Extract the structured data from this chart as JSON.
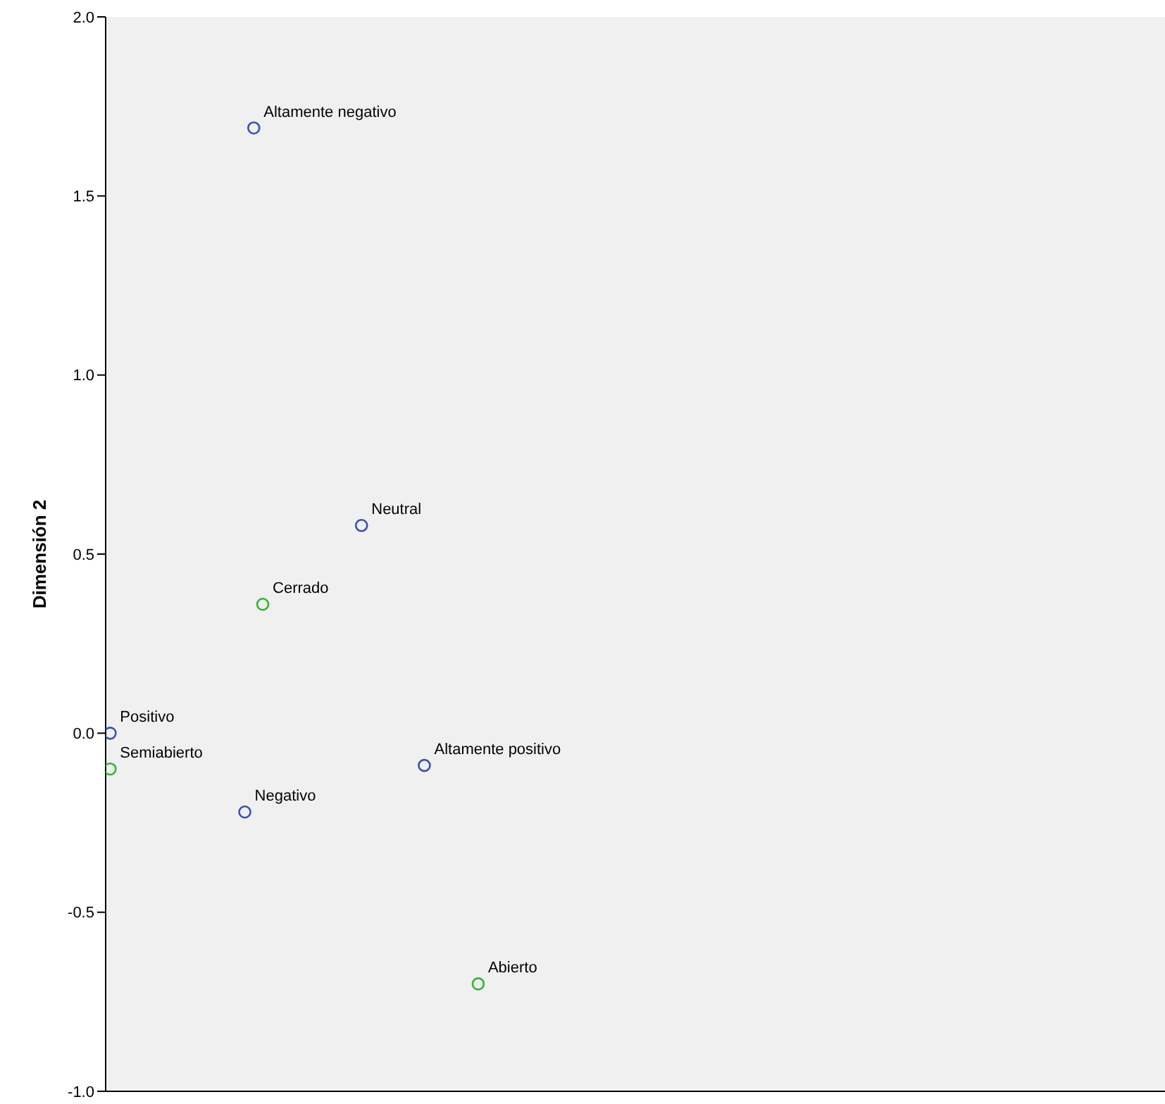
{
  "chart_data": {
    "type": "scatter",
    "ylabel": "Dimensión 2",
    "categories": [
      null,
      null,
      null,
      null,
      null,
      null,
      null,
      null,
      null,
      null,
      null,
      null,
      null,
      null,
      null,
      null,
      null,
      null,
      null,
      null,
      null,
      null,
      null,
      null,
      null,
      null,
      null,
      null,
      null,
      null,
      null,
      null,
      null,
      null,
      null,
      null,
      null,
      null,
      null,
      null,
      null,
      null,
      null,
      null,
      null,
      null,
      null,
      null,
      null,
      null,
      null,
      null,
      null,
      null,
      null,
      null,
      null,
      null,
      null,
      null,
      null,
      null,
      null,
      null,
      null,
      null,
      null,
      null,
      null,
      null,
      null,
      null,
      null,
      null,
      null,
      null,
      null,
      null,
      null,
      null,
      null,
      null,
      null,
      null,
      null,
      null,
      null,
      null,
      null,
      null,
      null,
      null,
      null,
      null,
      null,
      null,
      null,
      null,
      null,
      null,
      null,
      null,
      null,
      null,
      null,
      null,
      null,
      null,
      null,
      null,
      null,
      null,
      null,
      null,
      null,
      null,
      null,
      null
    ],
    "ylim": [
      -1,
      2
    ],
    "yticks": [
      {
        "value": -1,
        "label": "-1.0"
      },
      {
        "value": -0.5,
        "label": "-0.5"
      },
      {
        "value": 0,
        "label": "0.0"
      },
      {
        "value": 0.5,
        "label": "0.5"
      },
      {
        "value": 1,
        "label": "1.0"
      },
      {
        "value": 1.5,
        "label": "1.5"
      },
      {
        "value": 2,
        "label": "2.0"
      }
    ],
    "tick_labels": "y",
    "marker": "circle",
    "series": [
      {
        "color": "#3c50b4",
        "values": [
          0.0,
          null,
          null,
          null,
          null,
          null,
          null,
          null,
          null,
          null,
          null,
          null,
          null,
          null,
          null,
          -0.22,
          1.69,
          null,
          null,
          null,
          null,
          null,
          null,
          null,
          null,
          null,
          null,
          null,
          0.58,
          null,
          null,
          null,
          null,
          null,
          null,
          -0.09,
          null,
          null,
          null,
          null,
          null,
          null,
          null,
          null,
          null,
          null,
          null,
          null,
          null,
          null,
          null,
          null,
          null,
          null,
          null,
          null,
          null,
          null,
          null,
          null,
          null,
          null,
          null,
          null,
          null,
          null,
          null,
          null,
          null,
          null,
          null,
          null,
          null,
          null,
          null,
          null,
          null,
          null,
          null,
          null,
          null,
          null,
          null,
          null,
          null,
          null,
          null,
          null,
          null,
          null,
          null,
          null,
          null,
          null,
          null,
          null,
          null,
          null,
          null,
          null,
          null,
          null,
          null,
          null,
          null,
          null,
          null,
          null,
          null,
          null,
          null,
          null,
          null,
          null,
          null,
          null,
          null,
          null
        ],
        "value_labels": [
          "Positivo",
          null,
          null,
          null,
          null,
          null,
          null,
          null,
          null,
          null,
          null,
          null,
          null,
          null,
          null,
          "Negativo",
          "Altamente negativo",
          null,
          null,
          null,
          null,
          null,
          null,
          null,
          null,
          null,
          null,
          null,
          "Neutral",
          null,
          null,
          null,
          null,
          null,
          null,
          "Altamente positivo",
          null,
          null,
          null,
          null,
          null,
          null,
          null,
          null,
          null,
          null,
          null,
          null,
          null,
          null,
          null,
          null,
          null,
          null,
          null,
          null,
          null,
          null,
          null,
          null,
          null,
          null,
          null,
          null,
          null,
          null,
          null,
          null,
          null,
          null,
          null,
          null,
          null,
          null,
          null,
          null,
          null,
          null,
          null,
          null,
          null,
          null,
          null,
          null,
          null,
          null,
          null,
          null,
          null,
          null,
          null,
          null,
          null,
          null,
          null,
          null,
          null,
          null,
          null,
          null,
          null,
          null,
          null,
          null,
          null,
          null,
          null,
          null,
          null,
          null,
          null,
          null,
          null,
          null,
          null,
          null,
          null,
          null
        ]
      },
      {
        "color": "#2eb82e",
        "values": [
          -0.1,
          null,
          null,
          null,
          null,
          null,
          null,
          null,
          null,
          null,
          null,
          null,
          null,
          null,
          null,
          null,
          null,
          0.36,
          null,
          null,
          null,
          null,
          null,
          null,
          null,
          null,
          null,
          null,
          null,
          null,
          null,
          null,
          null,
          null,
          null,
          null,
          null,
          null,
          null,
          null,
          null,
          -0.7,
          null,
          null,
          null,
          null,
          null,
          null,
          null,
          null,
          null,
          null,
          null,
          null,
          null,
          null,
          null,
          null,
          null,
          null,
          null,
          null,
          null,
          null,
          null,
          null,
          null,
          null,
          null,
          null,
          null,
          null,
          null,
          null,
          null,
          null,
          null,
          null,
          null,
          null,
          null,
          null,
          null,
          null,
          null,
          null,
          null,
          null,
          null,
          null,
          null,
          null,
          null,
          null,
          null,
          null,
          null,
          null,
          null,
          null,
          null,
          null,
          null,
          null,
          null,
          null,
          null,
          null,
          null,
          null,
          null,
          null,
          null,
          null,
          null,
          null,
          null,
          null
        ],
        "value_labels": [
          "Semiabierto",
          null,
          null,
          null,
          null,
          null,
          null,
          null,
          null,
          null,
          null,
          null,
          null,
          null,
          null,
          null,
          null,
          "Cerrado",
          null,
          null,
          null,
          null,
          null,
          null,
          null,
          null,
          null,
          null,
          null,
          null,
          null,
          null,
          null,
          null,
          null,
          null,
          null,
          null,
          null,
          null,
          null,
          "Abierto",
          null,
          null,
          null,
          null,
          null,
          null,
          null,
          null,
          null,
          null,
          null,
          null,
          null,
          null,
          null,
          null,
          null,
          null,
          null,
          null,
          null,
          null,
          null,
          null,
          null,
          null,
          null,
          null,
          null,
          null,
          null,
          null,
          null,
          null,
          null,
          null,
          null,
          null,
          null,
          null,
          null,
          null,
          null,
          null,
          null,
          null,
          null,
          null,
          null,
          null,
          null,
          null,
          null,
          null,
          null,
          null,
          null,
          null,
          null,
          null,
          null,
          null,
          null,
          null,
          null,
          null,
          null,
          null,
          null,
          null,
          null,
          null,
          null,
          null,
          null,
          null
        ]
      }
    ]
  }
}
